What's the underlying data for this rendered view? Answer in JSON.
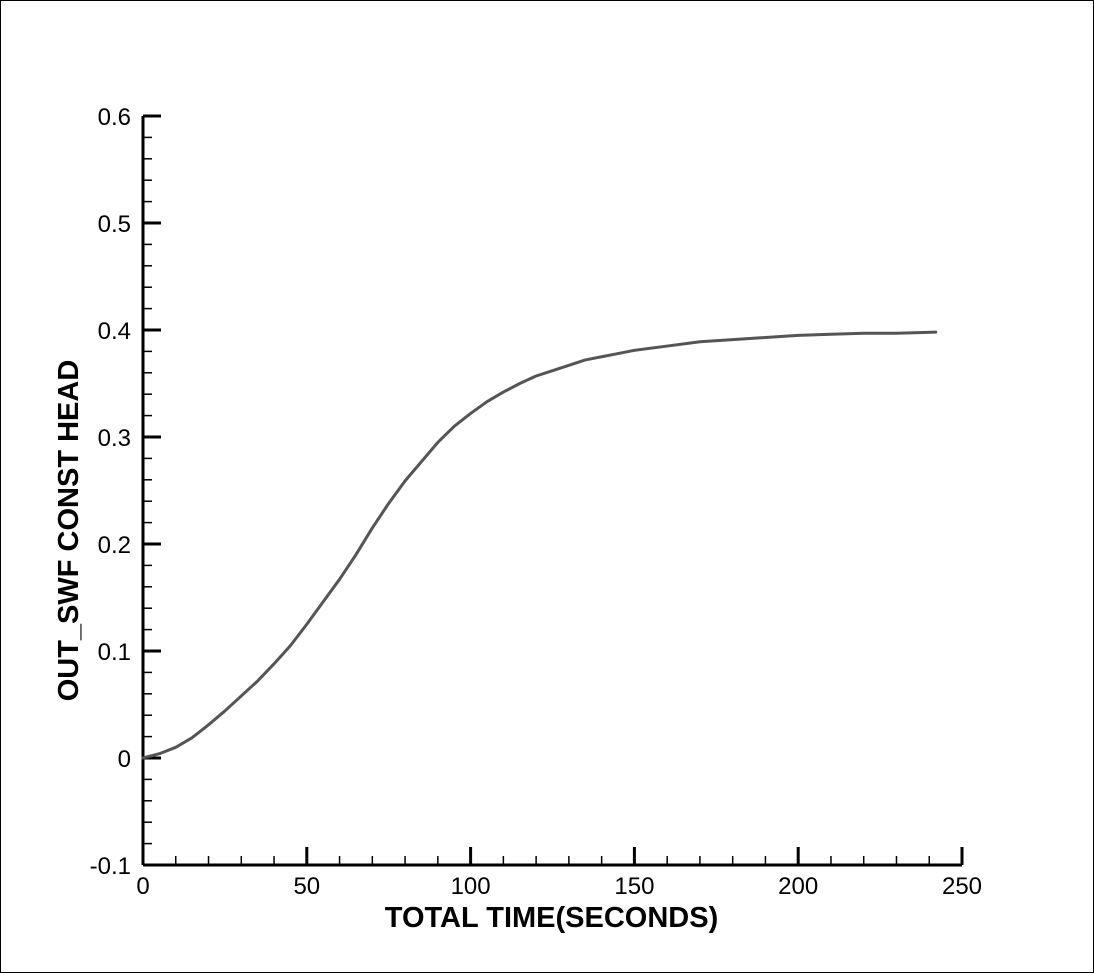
{
  "chart_data": {
    "type": "line",
    "title": "",
    "xlabel": "TOTAL TIME(SECONDS)",
    "ylabel": "OUT_SWF CONST HEAD",
    "xlim": [
      0,
      250
    ],
    "ylim": [
      -0.1,
      0.6
    ],
    "x_ticks": [
      0,
      50,
      100,
      150,
      200,
      250
    ],
    "x_tick_labels": [
      "0",
      "50",
      "100",
      "150",
      "200",
      "250"
    ],
    "y_ticks": [
      -0.1,
      0,
      0.1,
      0.2,
      0.3,
      0.4,
      0.5,
      0.6
    ],
    "y_tick_labels": [
      "-0.1",
      "0",
      "0.1",
      "0.2",
      "0.3",
      "0.4",
      "0.5",
      "0.6"
    ],
    "grid": false,
    "legend": "none",
    "line_color": "#555555",
    "series": [
      {
        "x": [
          0,
          5,
          10,
          15,
          20,
          25,
          30,
          35,
          40,
          45,
          50,
          55,
          60,
          65,
          70,
          75,
          80,
          85,
          90,
          95,
          100,
          105,
          110,
          115,
          120,
          125,
          130,
          135,
          140,
          145,
          150,
          160,
          170,
          180,
          190,
          200,
          210,
          220,
          230,
          242
        ],
        "y": [
          0.0,
          0.004,
          0.01,
          0.019,
          0.031,
          0.044,
          0.058,
          0.072,
          0.088,
          0.105,
          0.125,
          0.146,
          0.167,
          0.19,
          0.215,
          0.238,
          0.259,
          0.277,
          0.295,
          0.31,
          0.322,
          0.333,
          0.342,
          0.35,
          0.357,
          0.362,
          0.367,
          0.372,
          0.375,
          0.378,
          0.381,
          0.385,
          0.389,
          0.391,
          0.393,
          0.395,
          0.396,
          0.397,
          0.397,
          0.398
        ]
      }
    ]
  }
}
